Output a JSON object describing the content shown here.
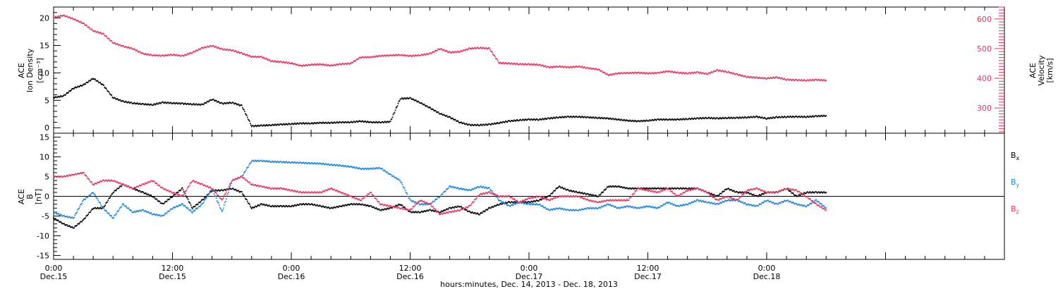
{
  "chart_data": [
    {
      "type": "scatter",
      "panel": "plasma",
      "ylabel_lines": [
        "ACE",
        "Ion Density",
        "[cm⁻³]"
      ],
      "ylim": [
        -1,
        22
      ],
      "yticks": [
        0,
        5,
        10,
        15,
        20
      ],
      "y2label_lines": [
        "ACE",
        "Velocity",
        "[km/s]"
      ],
      "y2lim": [
        215,
        640
      ],
      "y2ticks": [
        300,
        400,
        500,
        600
      ],
      "colors": {
        "density": "#000000",
        "velocity": "#e8335f"
      },
      "series": [
        {
          "axis": "left",
          "color": "#000000",
          "x": [
            0,
            1,
            2,
            3,
            4,
            5,
            6,
            7,
            8,
            9,
            10,
            11,
            12,
            13,
            14,
            15,
            16,
            17,
            18,
            19,
            20,
            21,
            22,
            23,
            24,
            25,
            26,
            27,
            28,
            29,
            30,
            31,
            32,
            33,
            34,
            35,
            36,
            37,
            38,
            39,
            40,
            41,
            42,
            43,
            44,
            45,
            46,
            47,
            48,
            49,
            50,
            51,
            52,
            53,
            54,
            55,
            56,
            57,
            58,
            59,
            60,
            61,
            62,
            63,
            64,
            65,
            66,
            67,
            68,
            69,
            70,
            71,
            72,
            73,
            74,
            75,
            76,
            77,
            78
          ],
          "values": [
            5.5,
            5.8,
            7.2,
            7.8,
            9.0,
            7.8,
            5.5,
            4.8,
            4.5,
            4.3,
            4.2,
            4.6,
            4.5,
            4.4,
            4.3,
            4.2,
            5.2,
            4.4,
            4.6,
            4.0,
            0.3,
            0.4,
            0.5,
            0.6,
            0.7,
            0.8,
            0.8,
            0.9,
            0.9,
            1.0,
            1.0,
            1.2,
            1.0,
            1.0,
            1.1,
            5.3,
            5.4,
            4.6,
            3.6,
            2.6,
            1.9,
            1.0,
            0.5,
            0.5,
            0.6,
            0.9,
            1.2,
            1.4,
            1.5,
            1.5,
            1.7,
            1.9,
            2.0,
            2.0,
            1.9,
            1.8,
            1.7,
            1.5,
            1.3,
            1.2,
            1.3,
            1.5,
            1.5,
            1.5,
            1.6,
            1.7,
            1.8,
            1.7,
            1.8,
            1.8,
            1.9,
            2.0,
            1.7,
            1.9,
            2.0,
            2.0,
            2.0,
            2.1,
            2.2
          ]
        },
        {
          "axis": "right",
          "color": "#e8335f",
          "x": [
            0,
            1,
            2,
            3,
            4,
            5,
            6,
            7,
            8,
            9,
            10,
            11,
            12,
            13,
            14,
            15,
            16,
            17,
            18,
            19,
            20,
            21,
            22,
            23,
            24,
            25,
            26,
            27,
            28,
            29,
            30,
            31,
            32,
            33,
            34,
            35,
            36,
            37,
            38,
            39,
            40,
            41,
            42,
            43,
            44,
            45,
            46,
            47,
            48,
            49,
            50,
            51,
            52,
            53,
            54,
            55,
            56,
            57,
            58,
            59,
            60,
            61,
            62,
            63,
            64,
            65,
            66,
            67,
            68,
            69,
            70,
            71,
            72,
            73,
            74,
            75,
            76,
            77,
            78
          ],
          "values": [
            605,
            612,
            600,
            585,
            560,
            550,
            520,
            508,
            500,
            483,
            478,
            476,
            480,
            475,
            487,
            502,
            510,
            498,
            495,
            484,
            473,
            472,
            458,
            455,
            451,
            442,
            446,
            447,
            443,
            448,
            450,
            471,
            471,
            476,
            477,
            479,
            475,
            478,
            483,
            500,
            487,
            490,
            500,
            503,
            500,
            452,
            450,
            448,
            447,
            446,
            437,
            440,
            437,
            440,
            434,
            430,
            411,
            417,
            418,
            419,
            417,
            418,
            424,
            419,
            417,
            420,
            415,
            427,
            422,
            413,
            405,
            402,
            400,
            403,
            396,
            394,
            393,
            395,
            393
          ]
        }
      ]
    },
    {
      "type": "scatter",
      "panel": "magnetic",
      "ylabel_lines": [
        "ACE",
        "B",
        "[nT]"
      ],
      "ylim": [
        -16,
        16
      ],
      "yticks": [
        -15,
        -10,
        -5,
        0,
        5,
        10,
        15
      ],
      "legend": "right",
      "series": [
        {
          "name": "Bx",
          "color": "#000000",
          "x": [
            0,
            1,
            2,
            3,
            4,
            5,
            6,
            7,
            8,
            9,
            10,
            11,
            12,
            13,
            14,
            15,
            16,
            17,
            18,
            19,
            20,
            21,
            22,
            23,
            24,
            25,
            26,
            27,
            28,
            29,
            30,
            31,
            32,
            33,
            34,
            35,
            36,
            37,
            38,
            39,
            40,
            41,
            42,
            43,
            44,
            45,
            46,
            47,
            48,
            49,
            50,
            51,
            52,
            53,
            54,
            55,
            56,
            57,
            58,
            59,
            60,
            61,
            62,
            63,
            64,
            65,
            66,
            67,
            68,
            69,
            70,
            71,
            72,
            73,
            74,
            75,
            76,
            77,
            78
          ],
          "values": [
            -5.5,
            -7.0,
            -8.0,
            -6.0,
            -3.0,
            -3.0,
            1.0,
            3.0,
            2.0,
            1.0,
            0.0,
            -2.0,
            0.0,
            2.0,
            -3.0,
            -1.0,
            1.5,
            1.5,
            2.0,
            1.0,
            -3.0,
            -2.0,
            -2.5,
            -2.5,
            -2.5,
            -2.0,
            -2.0,
            -2.5,
            -3.0,
            -2.5,
            -2.0,
            -2.0,
            -2.5,
            -3.5,
            -3.0,
            -2.0,
            -4.0,
            -4.0,
            -3.5,
            -4.0,
            -3.0,
            -2.5,
            -4.0,
            -4.5,
            -3.0,
            -2.0,
            -1.5,
            -1.5,
            -1.5,
            -1.0,
            0.0,
            2.5,
            1.5,
            1.0,
            0.5,
            0.0,
            2.5,
            2.5,
            2.0,
            2.0,
            2.0,
            2.0,
            2.0,
            2.0,
            2.0,
            2.0,
            1.0,
            0.0,
            2.0,
            1.0,
            1.0,
            0.0,
            1.0,
            1.0,
            2.0,
            0.0,
            1.0,
            1.0,
            1.0
          ]
        },
        {
          "name": "By",
          "color": "#1a84e0",
          "x": [
            0,
            1,
            2,
            3,
            4,
            5,
            6,
            7,
            8,
            9,
            10,
            11,
            12,
            13,
            14,
            15,
            16,
            17,
            18,
            19,
            20,
            21,
            22,
            23,
            24,
            25,
            26,
            27,
            28,
            29,
            30,
            31,
            32,
            33,
            34,
            35,
            36,
            37,
            38,
            39,
            40,
            41,
            42,
            43,
            44,
            45,
            46,
            47,
            48,
            49,
            50,
            51,
            52,
            53,
            54,
            55,
            56,
            57,
            58,
            59,
            60,
            61,
            62,
            63,
            64,
            65,
            66,
            67,
            68,
            69,
            70,
            71,
            72,
            73,
            74,
            75,
            76,
            77,
            78
          ],
          "values": [
            -4.0,
            -5.0,
            -5.5,
            -1.0,
            1.0,
            -3.0,
            -5.5,
            -2.0,
            -4.0,
            -3.5,
            -4.5,
            -5.0,
            -3.0,
            -2.0,
            -4.0,
            -2.0,
            2.0,
            -4.0,
            4.0,
            5.0,
            9.0,
            9.0,
            8.8,
            8.7,
            8.6,
            8.5,
            8.4,
            8.3,
            8.0,
            7.8,
            7.5,
            7.0,
            7.0,
            7.2,
            5.5,
            4.0,
            -1.0,
            -2.0,
            -2.0,
            0.0,
            2.5,
            2.0,
            1.5,
            2.5,
            2.0,
            -1.0,
            -2.5,
            -1.5,
            -2.0,
            -2.0,
            -3.5,
            -3.0,
            -3.5,
            -3.5,
            -3.0,
            -3.0,
            -2.0,
            -3.0,
            -2.5,
            -3.0,
            -2.5,
            -3.0,
            -1.5,
            -2.5,
            -2.0,
            -1.0,
            -1.5,
            -2.0,
            -1.0,
            -1.0,
            -2.0,
            -2.5,
            -1.0,
            -2.0,
            -1.0,
            -2.0,
            -2.5,
            -1.0,
            -3.0
          ]
        },
        {
          "name": "Bz",
          "color": "#e8335f",
          "x": [
            0,
            1,
            2,
            3,
            4,
            5,
            6,
            7,
            8,
            9,
            10,
            11,
            12,
            13,
            14,
            15,
            16,
            17,
            18,
            19,
            20,
            21,
            22,
            23,
            24,
            25,
            26,
            27,
            28,
            29,
            30,
            31,
            32,
            33,
            34,
            35,
            36,
            37,
            38,
            39,
            40,
            41,
            42,
            43,
            44,
            45,
            46,
            47,
            48,
            49,
            50,
            51,
            52,
            53,
            54,
            55,
            56,
            57,
            58,
            59,
            60,
            61,
            62,
            63,
            64,
            65,
            66,
            67,
            68,
            69,
            70,
            71,
            72,
            73,
            74,
            75,
            76,
            77,
            78
          ],
          "values": [
            5.0,
            5.0,
            5.5,
            6.0,
            3.0,
            4.0,
            4.0,
            3.0,
            2.0,
            3.0,
            4.0,
            2.0,
            1.0,
            0.0,
            4.0,
            3.0,
            2.0,
            -1.0,
            4.0,
            5.0,
            3.0,
            2.5,
            2.0,
            2.0,
            1.5,
            1.0,
            1.0,
            1.0,
            2.0,
            1.0,
            0.0,
            -1.0,
            1.0,
            -2.0,
            -2.5,
            -3.0,
            -3.5,
            -1.0,
            -2.0,
            -4.5,
            -4.0,
            -3.5,
            -2.5,
            0.5,
            1.0,
            0.0,
            0.0,
            -1.5,
            -0.5,
            0.0,
            -1.0,
            0.0,
            0.0,
            0.0,
            -1.0,
            -1.5,
            -1.0,
            -1.0,
            -1.0,
            2.0,
            1.5,
            1.0,
            2.0,
            0.0,
            1.5,
            2.0,
            1.0,
            -1.0,
            0.0,
            -1.0,
            1.5,
            2.0,
            1.0,
            1.0,
            2.0,
            1.5,
            0.0,
            -2.0,
            -3.5
          ]
        }
      ]
    }
  ],
  "xaxis": {
    "title": "hours:minutes, Dec. 14, 2013 - Dec. 18, 2013",
    "xlim": [
      0,
      96
    ],
    "ticks": [
      {
        "x": 0,
        "time": "0:00",
        "day": "Dec.15"
      },
      {
        "x": 12,
        "time": "12:00",
        "day": "Dec.15"
      },
      {
        "x": 24,
        "time": "0:00",
        "day": "Dec.16"
      },
      {
        "x": 36,
        "time": "12:00",
        "day": "Dec.16"
      },
      {
        "x": 48,
        "time": "0:00",
        "day": "Dec.17"
      },
      {
        "x": 60,
        "time": "12:00",
        "day": "Dec.17"
      },
      {
        "x": 72,
        "time": "0:00",
        "day": "Dec.18"
      }
    ]
  }
}
